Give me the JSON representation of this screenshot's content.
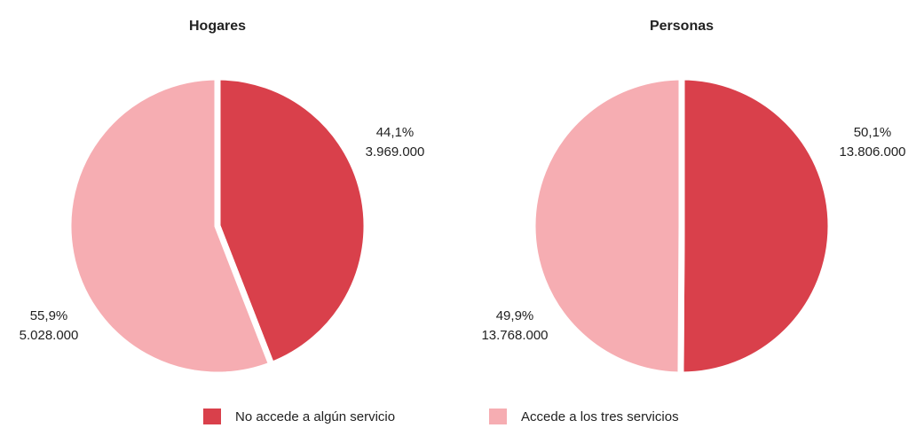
{
  "legend": [
    {
      "name": "No accede a algún servicio",
      "color": "#d9404b"
    },
    {
      "name": "Accede a los tres servicios",
      "color": "#f6adb2"
    }
  ],
  "chart_data": [
    {
      "type": "pie",
      "title": "Hogares",
      "values": [
        44.1,
        55.9
      ],
      "value_labels": [
        "44,1%",
        "55,9%"
      ],
      "counts": [
        3969000,
        5028000
      ],
      "count_labels": [
        "3.969.000",
        "5.028.000"
      ]
    },
    {
      "type": "pie",
      "title": "Personas",
      "values": [
        50.1,
        49.9
      ],
      "value_labels": [
        "50,1%",
        "49,9%"
      ],
      "counts": [
        13806000,
        13768000
      ],
      "count_labels": [
        "13.806.000",
        "13.768.000"
      ]
    }
  ]
}
